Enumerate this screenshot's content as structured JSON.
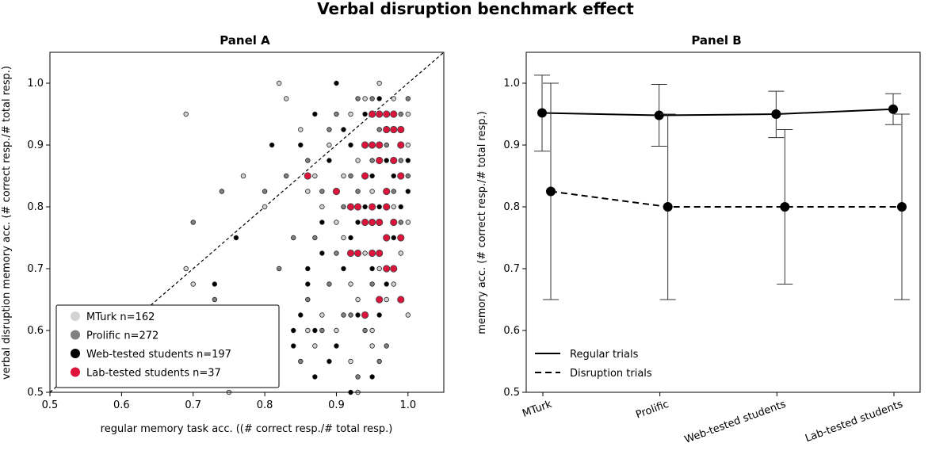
{
  "chart_data": {
    "title": "Verbal disruption benchmark effect",
    "panels": [
      {
        "type": "scatter",
        "title": "Panel A",
        "xlabel": "regular memory task acc. ((# correct resp./# total resp.)",
        "ylabel": "verbal disruption memory acc. (# correct resp./# total resp.)",
        "xlim": [
          0.5,
          1.05
        ],
        "ylim": [
          0.5,
          1.05
        ],
        "xticks": [
          "0.5",
          "0.6",
          "0.7",
          "0.8",
          "0.9",
          "1.0"
        ],
        "yticks": [
          "0.5",
          "0.6",
          "0.7",
          "0.8",
          "0.9",
          "1.0"
        ],
        "diagonal": "y = x",
        "legend_position": "lower-left",
        "series": [
          {
            "name": "MTurk n=162",
            "color": "#d3d3d3",
            "points": [
              [
                0.69,
                0.95
              ],
              [
                0.82,
                1.0
              ],
              [
                0.69,
                0.7
              ],
              [
                0.72,
                0.55
              ],
              [
                0.8,
                0.6
              ],
              [
                0.73,
                0.6
              ],
              [
                0.77,
                0.85
              ],
              [
                0.8,
                0.8
              ],
              [
                0.7,
                0.675
              ],
              [
                0.8,
                0.525
              ],
              [
                0.75,
                0.5
              ],
              [
                0.86,
                0.6
              ],
              [
                0.87,
                0.575
              ],
              [
                0.88,
                0.625
              ],
              [
                0.9,
                0.6
              ],
              [
                0.92,
                0.55
              ],
              [
                1.0,
                0.625
              ],
              [
                0.93,
                0.5
              ],
              [
                0.85,
                0.925
              ],
              [
                0.87,
                0.85
              ],
              [
                0.88,
                0.8
              ],
              [
                0.9,
                0.775
              ],
              [
                0.91,
                0.75
              ],
              [
                0.92,
                0.675
              ],
              [
                0.93,
                0.65
              ],
              [
                0.95,
                0.6
              ],
              [
                0.96,
                0.7
              ],
              [
                0.97,
                0.75
              ],
              [
                0.98,
                0.8
              ],
              [
                0.99,
                0.85
              ],
              [
                1.0,
                0.9
              ],
              [
                0.98,
                0.975
              ],
              [
                0.96,
                1.0
              ],
              [
                0.94,
                0.975
              ],
              [
                0.93,
                0.875
              ],
              [
                0.95,
                0.825
              ],
              [
                0.97,
                0.65
              ],
              [
                0.99,
                0.725
              ],
              [
                1.0,
                0.95
              ],
              [
                0.92,
                0.95
              ],
              [
                0.83,
                0.975
              ],
              [
                0.86,
                0.825
              ],
              [
                0.89,
                0.9
              ],
              [
                0.91,
                0.85
              ],
              [
                0.94,
                0.725
              ],
              [
                0.95,
                0.575
              ],
              [
                0.98,
                0.675
              ],
              [
                1.0,
                0.775
              ]
            ]
          },
          {
            "name": "Prolific n=272",
            "color": "#808080",
            "points": [
              [
                0.74,
                0.825
              ],
              [
                0.7,
                0.775
              ],
              [
                0.73,
                0.65
              ],
              [
                0.82,
                0.7
              ],
              [
                0.8,
                0.825
              ],
              [
                0.84,
                0.75
              ],
              [
                0.86,
                0.65
              ],
              [
                0.85,
                0.55
              ],
              [
                0.88,
                0.6
              ],
              [
                0.89,
                0.675
              ],
              [
                0.9,
                0.725
              ],
              [
                0.91,
                0.8
              ],
              [
                0.92,
                0.85
              ],
              [
                0.93,
                0.825
              ],
              [
                0.94,
                0.9
              ],
              [
                0.95,
                0.875
              ],
              [
                0.96,
                0.925
              ],
              [
                0.97,
                0.9
              ],
              [
                0.98,
                0.825
              ],
              [
                0.99,
                0.875
              ],
              [
                1.0,
                0.85
              ],
              [
                0.95,
                0.975
              ],
              [
                0.93,
                0.975
              ],
              [
                0.9,
                0.95
              ],
              [
                0.88,
                0.825
              ],
              [
                0.87,
                0.75
              ],
              [
                0.92,
                0.625
              ],
              [
                0.94,
                0.6
              ],
              [
                0.96,
                0.65
              ],
              [
                0.97,
                0.575
              ],
              [
                0.98,
                0.7
              ],
              [
                0.99,
                0.775
              ],
              [
                1.0,
                0.975
              ],
              [
                0.83,
                0.85
              ],
              [
                0.86,
                0.875
              ],
              [
                0.89,
                0.925
              ],
              [
                0.91,
                0.625
              ],
              [
                0.93,
                0.525
              ],
              [
                0.95,
                0.675
              ],
              [
                0.97,
                0.8
              ],
              [
                0.99,
                0.95
              ],
              [
                0.96,
                0.55
              ]
            ]
          },
          {
            "name": "Web-tested students n=197",
            "color": "#000000",
            "points": [
              [
                0.76,
                0.75
              ],
              [
                0.73,
                0.675
              ],
              [
                0.81,
                0.9
              ],
              [
                0.85,
                0.9
              ],
              [
                0.87,
                0.95
              ],
              [
                0.9,
                1.0
              ],
              [
                0.88,
                0.775
              ],
              [
                0.86,
                0.675
              ],
              [
                0.85,
                0.625
              ],
              [
                0.84,
                0.6
              ],
              [
                0.87,
                0.6
              ],
              [
                0.89,
                0.55
              ],
              [
                0.9,
                0.575
              ],
              [
                0.91,
                0.7
              ],
              [
                0.92,
                0.75
              ],
              [
                0.93,
                0.775
              ],
              [
                0.94,
                0.8
              ],
              [
                0.95,
                0.85
              ],
              [
                0.96,
                0.8
              ],
              [
                0.97,
                0.875
              ],
              [
                0.98,
                0.85
              ],
              [
                0.99,
                0.8
              ],
              [
                1.0,
                0.825
              ],
              [
                0.94,
                0.95
              ],
              [
                0.96,
                0.975
              ],
              [
                0.92,
                0.9
              ],
              [
                0.9,
                0.825
              ],
              [
                0.88,
                0.725
              ],
              [
                0.86,
                0.7
              ],
              [
                0.84,
                0.575
              ],
              [
                0.93,
                0.625
              ],
              [
                0.95,
                0.525
              ],
              [
                0.96,
                0.625
              ],
              [
                0.98,
                0.75
              ],
              [
                1.0,
                0.875
              ],
              [
                0.91,
                0.925
              ],
              [
                0.89,
                0.875
              ],
              [
                0.87,
                0.525
              ],
              [
                0.95,
                0.7
              ],
              [
                0.97,
                0.675
              ],
              [
                0.99,
                0.9
              ],
              [
                0.92,
                0.5
              ]
            ]
          },
          {
            "name": "Lab-tested students n=37",
            "color": "#dc143c",
            "points": [
              [
                0.86,
                0.85
              ],
              [
                0.9,
                0.825
              ],
              [
                0.92,
                0.8
              ],
              [
                0.94,
                0.85
              ],
              [
                0.95,
                0.9
              ],
              [
                0.96,
                0.95
              ],
              [
                0.97,
                0.95
              ],
              [
                0.98,
                0.925
              ],
              [
                0.99,
                0.9
              ],
              [
                0.96,
                0.875
              ],
              [
                0.97,
                0.825
              ],
              [
                0.95,
                0.725
              ],
              [
                0.93,
                0.725
              ],
              [
                0.94,
                0.625
              ],
              [
                0.97,
                0.7
              ],
              [
                0.98,
                0.775
              ],
              [
                0.99,
                0.75
              ],
              [
                0.96,
                0.775
              ],
              [
                0.94,
                0.775
              ],
              [
                0.92,
                0.725
              ],
              [
                0.96,
                0.725
              ],
              [
                0.97,
                0.8
              ],
              [
                0.95,
                0.8
              ],
              [
                0.98,
                0.875
              ],
              [
                0.99,
                0.85
              ],
              [
                0.96,
                0.9
              ],
              [
                0.97,
                0.925
              ],
              [
                0.98,
                0.95
              ],
              [
                0.99,
                0.925
              ],
              [
                0.95,
                0.95
              ],
              [
                0.94,
                0.9
              ],
              [
                0.93,
                0.8
              ],
              [
                0.97,
                0.75
              ],
              [
                0.98,
                0.7
              ],
              [
                0.96,
                0.65
              ],
              [
                0.99,
                0.65
              ],
              [
                0.95,
                0.775
              ]
            ]
          }
        ]
      },
      {
        "type": "line",
        "title": "Panel B",
        "xlabel": "",
        "ylabel": "memory acc. (# correct resp./# total resp.)",
        "categories": [
          "MTurk",
          "Prolific",
          "Web-tested students",
          "Lab-tested students"
        ],
        "ylim": [
          0.5,
          1.05
        ],
        "yticks": [
          "0.5",
          "0.6",
          "0.7",
          "0.8",
          "0.9",
          "1.0"
        ],
        "legend_position": "lower-left",
        "series": [
          {
            "name": "Regular trials",
            "style": "solid",
            "values": [
              0.952,
              0.948,
              0.95,
              0.958
            ],
            "err_low": [
              0.89,
              0.898,
              0.912,
              0.933
            ],
            "err_high": [
              1.013,
              0.998,
              0.987,
              0.983
            ]
          },
          {
            "name": "Disruption trials",
            "style": "dashed",
            "values": [
              0.825,
              0.8,
              0.8,
              0.8
            ],
            "err_low": [
              0.65,
              0.65,
              0.675,
              0.65
            ],
            "err_high": [
              1.0,
              0.95,
              0.925,
              0.95
            ]
          }
        ]
      }
    ]
  }
}
